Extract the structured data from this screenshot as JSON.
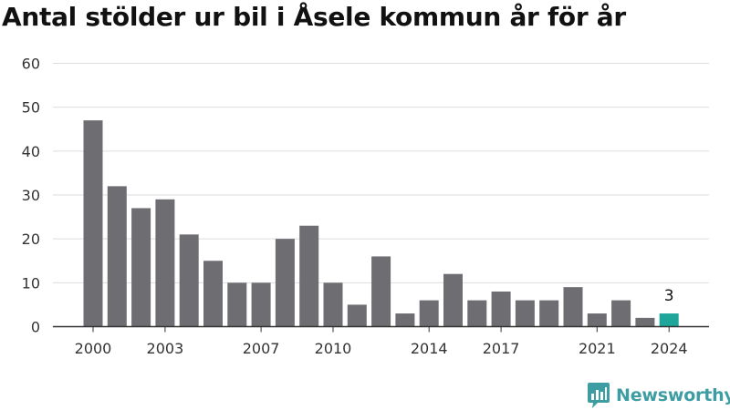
{
  "chart_data": {
    "type": "bar",
    "title": "Antal stölder ur bil i Åsele kommun år för år",
    "x": [
      2000,
      2001,
      2002,
      2003,
      2004,
      2005,
      2006,
      2007,
      2008,
      2009,
      2010,
      2011,
      2012,
      2013,
      2014,
      2015,
      2016,
      2017,
      2018,
      2019,
      2020,
      2021,
      2022,
      2023,
      2024
    ],
    "values": [
      47,
      32,
      27,
      29,
      21,
      15,
      10,
      10,
      20,
      23,
      10,
      5,
      16,
      3,
      6,
      12,
      6,
      8,
      6,
      6,
      9,
      3,
      6,
      2,
      3
    ],
    "x_tick_labels": [
      "2000",
      "2003",
      "2007",
      "2010",
      "2014",
      "2017",
      "2021",
      "2024"
    ],
    "y_tick_labels": [
      "0",
      "10",
      "20",
      "30",
      "40",
      "50",
      "60"
    ],
    "ylim": [
      0,
      60
    ],
    "grid": true,
    "highlight": {
      "x": 2024,
      "label": "3"
    },
    "colors": {
      "bar": "#6e6d72",
      "highlight": "#1fa69a",
      "grid": "#dddddd",
      "axis": "#333333"
    }
  },
  "brand": {
    "name": "Newsworthy",
    "icon": "newsworthy-logo-icon",
    "color": "#3d9da2"
  }
}
